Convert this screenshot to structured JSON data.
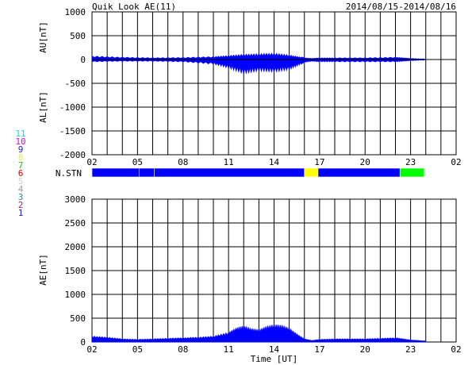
{
  "header": {
    "title": "Quik Look AE(11)",
    "date_range": "2014/08/15-2014/08/16"
  },
  "legend": {
    "items": [
      {
        "label": "11",
        "color": "#00e0e0"
      },
      {
        "label": "10",
        "color": "#e000e0"
      },
      {
        "label": "9",
        "color": "#2020c0"
      },
      {
        "label": "8",
        "color": "#e8e860"
      },
      {
        "label": "7",
        "color": "#20c020"
      },
      {
        "label": "6",
        "color": "#e00000"
      },
      {
        "label": "5",
        "color": "#d0d0d0"
      },
      {
        "label": "4",
        "color": "#a0a0a0"
      },
      {
        "label": "3",
        "color": "#209090"
      },
      {
        "label": "2",
        "color": "#a02080"
      },
      {
        "label": "1",
        "color": "#2020c0"
      }
    ]
  },
  "chart_data": [
    {
      "type": "area",
      "ylabel_top": "AU[nT]",
      "ylabel_bottom": "AL[nT]",
      "ylim": [
        -2000,
        1000
      ],
      "yticks": [
        1000,
        500,
        0,
        -500,
        -1000,
        -1500,
        -2000
      ],
      "xticks": [
        "02",
        "05",
        "08",
        "11",
        "14",
        "17",
        "20",
        "23",
        "02"
      ],
      "x": [
        2,
        4,
        6,
        8,
        10,
        11,
        12,
        13,
        14,
        15,
        15.8,
        16,
        16.5,
        17,
        18,
        20,
        22,
        22.5,
        23,
        24
      ],
      "au": [
        60,
        40,
        30,
        35,
        50,
        70,
        90,
        100,
        110,
        80,
        40,
        30,
        20,
        30,
        30,
        30,
        40,
        30,
        20,
        10
      ],
      "al": [
        -40,
        -30,
        -30,
        -40,
        -80,
        -150,
        -250,
        -200,
        -220,
        -180,
        -80,
        -50,
        -30,
        -40,
        -40,
        -40,
        -40,
        -30,
        -20,
        -10
      ]
    },
    {
      "type": "bar",
      "label": "N.STN",
      "segments": [
        {
          "start": 2,
          "end": 5.1,
          "count": 9,
          "color": "#0000ff"
        },
        {
          "start": 5.1,
          "end": 6.1,
          "count": 9,
          "color": "#0000ff"
        },
        {
          "start": 6.1,
          "end": 16.0,
          "count": 9,
          "color": "#0000ff"
        },
        {
          "start": 16.0,
          "end": 16.9,
          "count": 8,
          "color": "#ffff00"
        },
        {
          "start": 16.9,
          "end": 22.3,
          "count": 9,
          "color": "#0000ff"
        },
        {
          "start": 22.3,
          "end": 23.9,
          "count": 7,
          "color": "#00ff00"
        }
      ]
    },
    {
      "type": "area",
      "ylabel": "AE[nT]",
      "xlabel": "Time [UT]",
      "ylim": [
        0,
        3000
      ],
      "yticks": [
        3000,
        2500,
        2000,
        1500,
        1000,
        500,
        0
      ],
      "xticks": [
        "02",
        "05",
        "08",
        "11",
        "14",
        "17",
        "20",
        "23",
        "02"
      ],
      "x": [
        2,
        3,
        4,
        5,
        6,
        7,
        8,
        9,
        10,
        11,
        11.5,
        12,
        12.5,
        13,
        13.5,
        14,
        14.5,
        15,
        15.5,
        16,
        16.5,
        17,
        18,
        19,
        20,
        21,
        22,
        22.5,
        23,
        23.5,
        24
      ],
      "values": [
        110,
        90,
        60,
        50,
        60,
        70,
        80,
        90,
        110,
        180,
        260,
        300,
        250,
        230,
        290,
        320,
        310,
        260,
        150,
        60,
        30,
        50,
        60,
        60,
        60,
        70,
        80,
        60,
        40,
        30,
        20
      ]
    }
  ]
}
